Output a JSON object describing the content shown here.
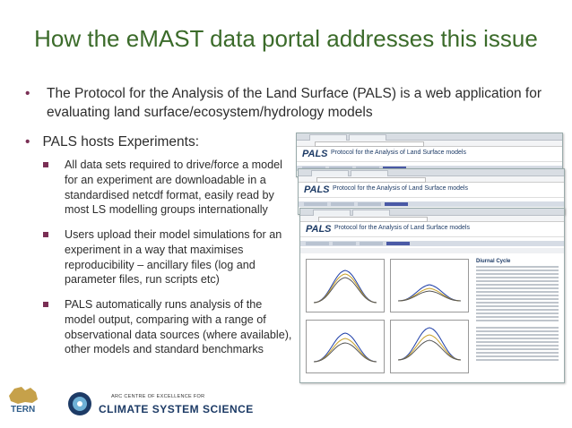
{
  "slide": {
    "title": "How the eMAST data portal addresses this issue",
    "bullet1": "The Protocol for the Analysis of the Land Surface (PALS) is a web application for evaluating land surface/ecosystem/hydrology models",
    "bullet2": "PALS hosts Experiments:",
    "sub_bullets": [
      "All data sets required to drive/force a model for an experiment are downloadable in a standardised netcdf format, easily read by most LS modelling groups internationally",
      "Users upload their model simulations for an experiment in a way that maximises reproducibility – ancillary files (log and parameter files, run scripts etc)",
      "PALS automatically runs analysis of the model output, comparing with a range of observational data sources (where available), other models and standard benchmarks"
    ]
  },
  "screenshot": {
    "logo": "PALS",
    "app_title": "Protocol for the Analysis of Land Surface models",
    "section_heading": "Diurnal Cycle"
  },
  "footer": {
    "tern_label": "TERN",
    "arc_small": "ARC CENTRE OF EXCELLENCE FOR",
    "arc_big": "CLIMATE SYSTEM SCIENCE"
  },
  "colors": {
    "title": "#3b6b2a",
    "bullet_marker": "#7a2f55",
    "pals_blue": "#1d3b66"
  }
}
